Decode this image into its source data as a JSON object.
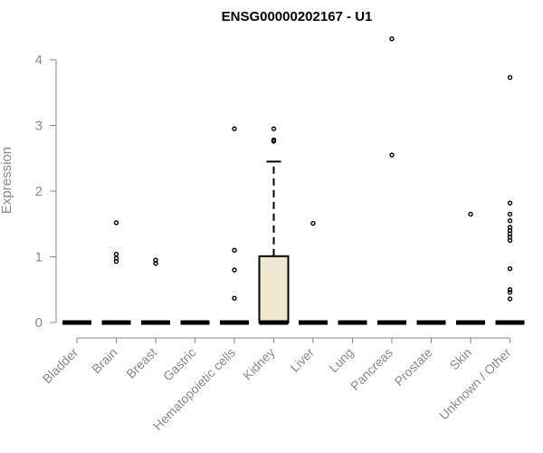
{
  "chart_data": {
    "type": "boxplot",
    "title": "ENSG00000202167 - U1",
    "xlabel": "",
    "ylabel": "Expression",
    "ylim": [
      0,
      4.4
    ],
    "yticks": [
      0,
      1,
      2,
      3,
      4
    ],
    "grid": false,
    "box_fill": "#ede8cf",
    "categories": [
      "Bladder",
      "Brain",
      "Breast",
      "Gastric",
      "Hematopoietic cells",
      "Kidney",
      "Liver",
      "Lung",
      "Pancreas",
      "Prostate",
      "Skin",
      "Unknown / Other"
    ],
    "boxes": [
      {
        "category": "Bladder",
        "q1": 0,
        "median": 0,
        "q3": 0,
        "whisker_low": 0,
        "whisker_high": 0,
        "outliers": []
      },
      {
        "category": "Brain",
        "q1": 0,
        "median": 0,
        "q3": 0,
        "whisker_low": 0,
        "whisker_high": 0,
        "outliers": [
          1.52,
          1.04,
          0.98,
          0.93
        ]
      },
      {
        "category": "Breast",
        "q1": 0,
        "median": 0,
        "q3": 0,
        "whisker_low": 0,
        "whisker_high": 0,
        "outliers": [
          0.95,
          0.9
        ]
      },
      {
        "category": "Gastric",
        "q1": 0,
        "median": 0,
        "q3": 0,
        "whisker_low": 0,
        "whisker_high": 0,
        "outliers": []
      },
      {
        "category": "Hematopoietic cells",
        "q1": 0,
        "median": 0,
        "q3": 0,
        "whisker_low": 0,
        "whisker_high": 0,
        "outliers": [
          2.95,
          1.1,
          0.8,
          0.37
        ]
      },
      {
        "category": "Kidney",
        "q1": 0,
        "median": 0,
        "q3": 1.01,
        "whisker_low": 0,
        "whisker_high": 2.45,
        "outliers": [
          2.95,
          2.78,
          2.76
        ]
      },
      {
        "category": "Liver",
        "q1": 0,
        "median": 0,
        "q3": 0,
        "whisker_low": 0,
        "whisker_high": 0,
        "outliers": [
          1.51
        ]
      },
      {
        "category": "Lung",
        "q1": 0,
        "median": 0,
        "q3": 0,
        "whisker_low": 0,
        "whisker_high": 0,
        "outliers": []
      },
      {
        "category": "Pancreas",
        "q1": 0,
        "median": 0,
        "q3": 0,
        "whisker_low": 0,
        "whisker_high": 0,
        "outliers": [
          4.32,
          2.55
        ]
      },
      {
        "category": "Prostate",
        "q1": 0,
        "median": 0,
        "q3": 0,
        "whisker_low": 0,
        "whisker_high": 0,
        "outliers": []
      },
      {
        "category": "Skin",
        "q1": 0,
        "median": 0,
        "q3": 0,
        "whisker_low": 0,
        "whisker_high": 0,
        "outliers": [
          1.65
        ]
      },
      {
        "category": "Unknown / Other",
        "q1": 0,
        "median": 0,
        "q3": 0,
        "whisker_low": 0,
        "whisker_high": 0,
        "outliers": [
          3.73,
          1.82,
          1.65,
          1.55,
          1.45,
          1.4,
          1.35,
          1.3,
          1.25,
          0.82,
          0.5,
          0.46,
          0.36
        ]
      }
    ]
  }
}
